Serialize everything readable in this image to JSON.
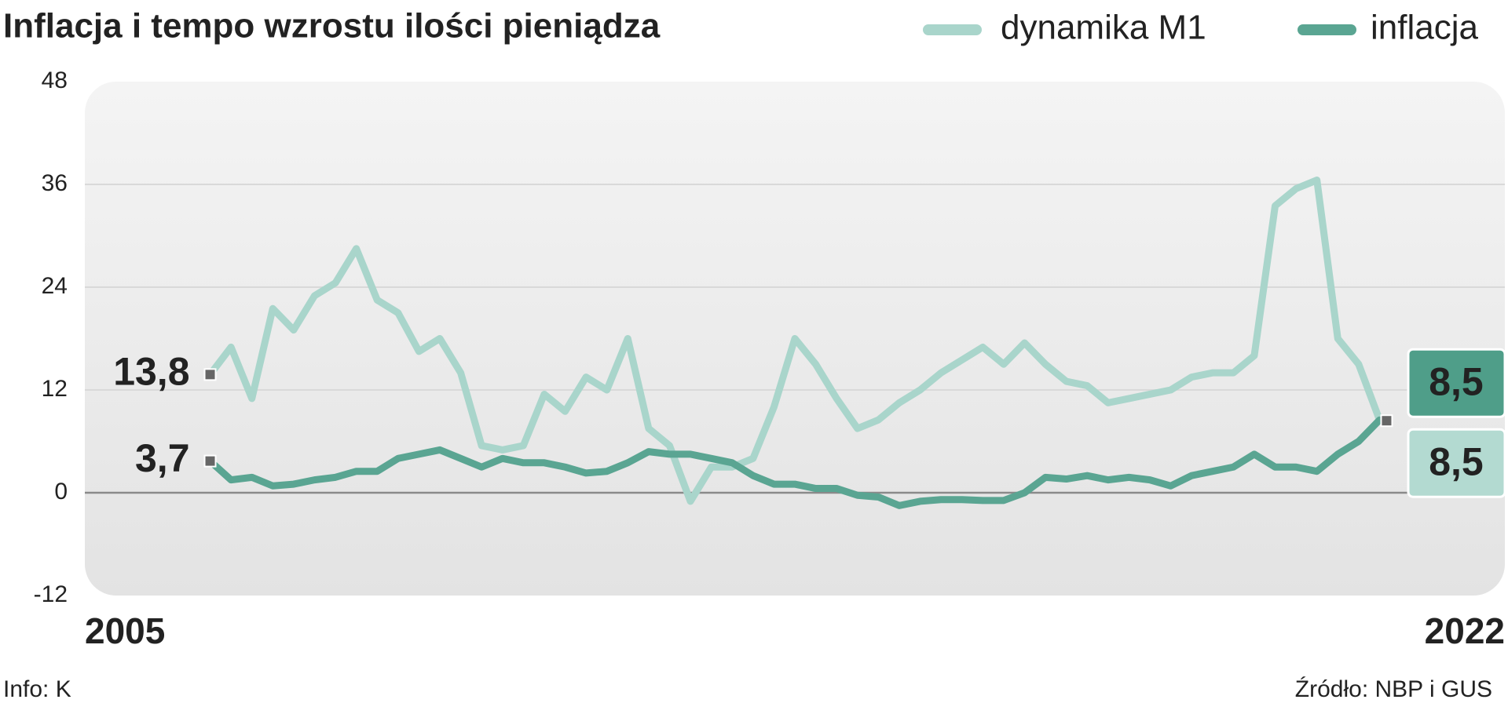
{
  "chart_data": {
    "type": "line",
    "title": "Inflacja i tempo wzrostu ilości pieniądza",
    "credit": "Info: K",
    "source": "Źródło:  NBP i GUS",
    "x": [
      2006.5,
      2006.75,
      2007,
      2007.25,
      2007.5,
      2007.75,
      2008,
      2008.25,
      2008.5,
      2008.75,
      2009,
      2009.25,
      2009.5,
      2009.75,
      2010,
      2010.25,
      2010.5,
      2010.75,
      2011,
      2011.25,
      2011.5,
      2011.75,
      2012,
      2012.25,
      2012.5,
      2012.75,
      2013,
      2013.25,
      2013.5,
      2013.75,
      2014,
      2014.25,
      2014.5,
      2014.75,
      2015,
      2015.25,
      2015.5,
      2015.75,
      2016,
      2016.25,
      2016.5,
      2016.75,
      2017,
      2017.25,
      2017.5,
      2017.75,
      2018,
      2018.25,
      2018.5,
      2018.75,
      2019,
      2019.25,
      2019.5,
      2019.75,
      2020,
      2020.25,
      2020.5
    ],
    "xlim": [
      2005,
      2022
    ],
    "xticks": [
      2005,
      2022
    ],
    "ylim": [
      -12,
      48
    ],
    "yticks": [
      48,
      36,
      24,
      12,
      0,
      -12
    ],
    "grid": true,
    "series": [
      {
        "name": "dynamika M1",
        "color": "#a9d5cb",
        "values": [
          13.8,
          17,
          11,
          21.5,
          19,
          23,
          24.5,
          28.5,
          22.5,
          21,
          16.5,
          18,
          14,
          5.5,
          5,
          5.5,
          11.5,
          9.5,
          13.5,
          12,
          18,
          7.5,
          5.5,
          -1,
          3,
          3,
          4,
          10,
          18,
          15,
          11,
          7.5,
          8.5,
          10.5,
          12,
          14,
          15.5,
          17,
          15,
          17.5,
          15,
          13,
          12.5,
          10.5,
          11,
          11.5,
          12,
          13.5,
          14,
          14,
          16,
          33.5,
          35.5,
          36.5,
          18,
          15,
          8.5
        ],
        "value_labels": [
          "13,8",
          null,
          null,
          null,
          null,
          null,
          null,
          null,
          null,
          null,
          null,
          null,
          null,
          null,
          null,
          null,
          null,
          null,
          null,
          null,
          null,
          null,
          null,
          null,
          null,
          null,
          null,
          null,
          null,
          null,
          null,
          null,
          null,
          null,
          null,
          null,
          null,
          null,
          null,
          null,
          null,
          null,
          null,
          null,
          null,
          null,
          null,
          null,
          null,
          null,
          null,
          null,
          null,
          null,
          null,
          null,
          "8,5"
        ]
      },
      {
        "name": "inflacja",
        "color": "#5aa592",
        "values": [
          3.7,
          1.5,
          1.8,
          0.8,
          1,
          1.5,
          1.8,
          2.5,
          2.5,
          4,
          4.5,
          5,
          4,
          3,
          4,
          3.5,
          3.5,
          3,
          2.3,
          2.5,
          3.5,
          4.8,
          4.5,
          4.5,
          4,
          3.5,
          2,
          1,
          1,
          0.5,
          0.5,
          -0.3,
          -0.5,
          -1.5,
          -1,
          -0.8,
          -0.8,
          -0.9,
          -0.9,
          0,
          1.8,
          1.6,
          2,
          1.5,
          1.8,
          1.5,
          0.8,
          2,
          2.5,
          3,
          4.5,
          3,
          3,
          2.5,
          4.5,
          6,
          8.5
        ],
        "value_labels": [
          "3,7",
          null,
          null,
          null,
          null,
          null,
          null,
          null,
          null,
          null,
          null,
          null,
          null,
          null,
          null,
          null,
          null,
          null,
          null,
          null,
          null,
          null,
          null,
          null,
          null,
          null,
          null,
          null,
          null,
          null,
          null,
          null,
          null,
          null,
          null,
          null,
          null,
          null,
          null,
          null,
          null,
          null,
          null,
          null,
          null,
          null,
          null,
          null,
          null,
          null,
          null,
          null,
          null,
          null,
          null,
          null,
          "8,5"
        ]
      }
    ]
  }
}
